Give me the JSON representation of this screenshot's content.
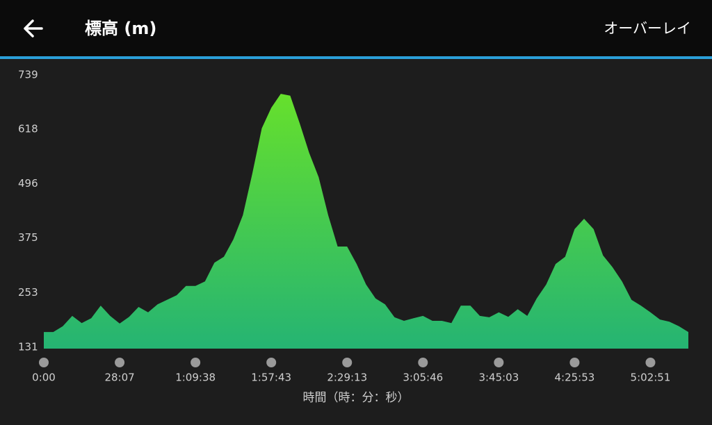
{
  "header": {
    "title": "標高 (m)",
    "action": "オーバーレイ"
  },
  "chart_data": {
    "type": "area",
    "x_label": "時間（時：分：秒）",
    "categories": [
      "0:00",
      null,
      null,
      null,
      null,
      null,
      null,
      null,
      "28:07",
      null,
      null,
      null,
      null,
      null,
      null,
      null,
      "1:09:38",
      null,
      null,
      null,
      null,
      null,
      null,
      null,
      "1:57:43",
      null,
      null,
      null,
      null,
      null,
      null,
      null,
      "2:29:13",
      null,
      null,
      null,
      null,
      null,
      null,
      null,
      "3:05:46",
      null,
      null,
      null,
      null,
      null,
      null,
      null,
      "3:45:03",
      null,
      null,
      null,
      null,
      null,
      null,
      null,
      "4:25:53",
      null,
      null,
      null,
      null,
      null,
      null,
      null,
      "5:02:51",
      null,
      null,
      null,
      null
    ],
    "values": [
      168,
      168,
      181,
      204,
      188,
      199,
      227,
      204,
      187,
      202,
      224,
      212,
      230,
      240,
      250,
      271,
      271,
      281,
      323,
      336,
      375,
      429,
      522,
      623,
      669,
      700,
      696,
      634,
      568,
      514,
      429,
      359,
      359,
      320,
      274,
      243,
      230,
      201,
      193,
      199,
      204,
      193,
      193,
      188,
      227,
      227,
      204,
      201,
      212,
      202,
      219,
      204,
      243,
      274,
      320,
      336,
      398,
      421,
      398,
      339,
      313,
      281,
      240,
      227,
      212,
      196,
      191,
      181,
      168
    ],
    "color": "#66e02c",
    "ylim": [
      131,
      739
    ],
    "yticks": [
      131,
      253,
      375,
      496,
      618,
      739
    ]
  }
}
